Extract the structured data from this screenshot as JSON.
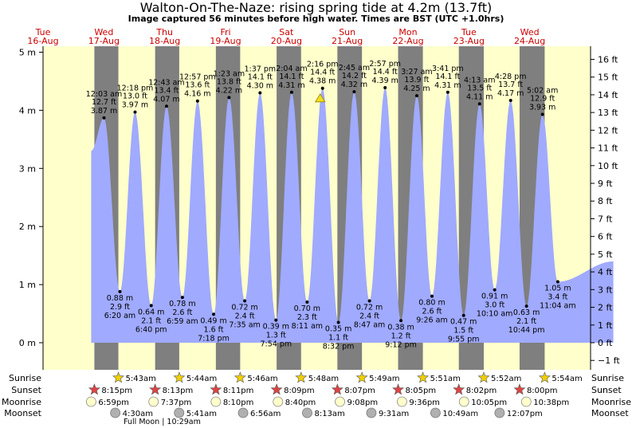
{
  "title": "Walton-On-The-Naze: rising  spring tide at 4.2m (13.7ft)",
  "subtitle": "Image captured 56 minutes before high water. Times are BST (UTC +1.0hrs)",
  "colors": {
    "background": "#ffffcc",
    "night": "#7f7f7f",
    "tide_fill": "#a0aaff",
    "day_label": "#cc0000",
    "sun_star": "#f0d000",
    "sunset_star": "#dd4444",
    "moonrise": "#ffffcc",
    "moonset": "#b0b0b0"
  },
  "days": [
    {
      "dow": "Tue",
      "date": "16-Aug"
    },
    {
      "dow": "Wed",
      "date": "17-Aug"
    },
    {
      "dow": "Thu",
      "date": "18-Aug"
    },
    {
      "dow": "Fri",
      "date": "19-Aug"
    },
    {
      "dow": "Sat",
      "date": "20-Aug"
    },
    {
      "dow": "Sun",
      "date": "21-Aug"
    },
    {
      "dow": "Mon",
      "date": "22-Aug"
    },
    {
      "dow": "Tue",
      "date": "23-Aug"
    },
    {
      "dow": "Wed",
      "date": "24-Aug"
    }
  ],
  "row_labels": {
    "sunrise": "Sunrise",
    "sunset": "Sunset",
    "moonrise": "Moonrise",
    "moonset": "Moonset"
  },
  "full_moon_note": "Full Moon | 10:29am",
  "chart_data": {
    "type": "area",
    "x_unit": "hours since 2016-08-16 00:00 BST",
    "y_left": {
      "unit": "m",
      "ticks": [
        0,
        1,
        2,
        3,
        4,
        5
      ],
      "tick_labels": [
        "0 m",
        "1 m",
        "2 m",
        "3 m",
        "4 m",
        "5 m"
      ]
    },
    "y_right": {
      "unit": "ft",
      "ticks": [
        -1,
        0,
        1,
        2,
        3,
        4,
        5,
        6,
        7,
        8,
        9,
        10,
        11,
        12,
        13,
        14,
        15,
        16
      ],
      "tick_labels": [
        "−1 ft",
        "0 ft",
        "1 ft",
        "2 ft",
        "3 ft",
        "4 ft",
        "5 ft",
        "6 ft",
        "7 ft",
        "8 ft",
        "9 ft",
        "10 ft",
        "11 ft",
        "12 ft",
        "13 ft",
        "14 ft",
        "15 ft",
        "16 ft"
      ]
    },
    "curve_start": {
      "time": 19.0,
      "height_m": 3.3
    },
    "curve_end": {
      "time": 225.0,
      "height_m": 1.4
    },
    "tides": [
      {
        "type": "high",
        "time": 24.05,
        "label": "12:03 am",
        "ft": "12.7 ft",
        "m": "3.87 m",
        "height_m": 3.87
      },
      {
        "type": "low",
        "time": 30.33,
        "label": "6:20 am",
        "ft": "2.9 ft",
        "m": "0.88 m",
        "height_m": 0.88
      },
      {
        "type": "high",
        "time": 36.3,
        "label": "12:18 pm",
        "ft": "13.0 ft",
        "m": "3.97 m",
        "height_m": 3.97
      },
      {
        "type": "low",
        "time": 42.67,
        "label": "6:40 pm",
        "ft": "2.1 ft",
        "m": "0.64 m",
        "height_m": 0.64
      },
      {
        "type": "high",
        "time": 48.72,
        "label": "12:43 am",
        "ft": "13.4 ft",
        "m": "4.07 m",
        "height_m": 4.07
      },
      {
        "type": "low",
        "time": 54.98,
        "label": "6:59 am",
        "ft": "2.6 ft",
        "m": "0.78 m",
        "height_m": 0.78
      },
      {
        "type": "high",
        "time": 60.95,
        "label": "12:57 pm",
        "ft": "13.6 ft",
        "m": "4.16 m",
        "height_m": 4.16
      },
      {
        "type": "low",
        "time": 67.3,
        "label": "7:18 pm",
        "ft": "1.6 ft",
        "m": "0.49 m",
        "height_m": 0.49
      },
      {
        "type": "high",
        "time": 73.38,
        "label": "1:23 am",
        "ft": "13.8 ft",
        "m": "4.22 m",
        "height_m": 4.22
      },
      {
        "type": "low",
        "time": 79.58,
        "label": "7:35 am",
        "ft": "2.4 ft",
        "m": "0.72 m",
        "height_m": 0.72
      },
      {
        "type": "high",
        "time": 85.62,
        "label": "1:37 pm",
        "ft": "14.1 ft",
        "m": "4.30 m",
        "height_m": 4.3
      },
      {
        "type": "low",
        "time": 91.9,
        "label": "7:54 pm",
        "ft": "1.3 ft",
        "m": "0.39 m",
        "height_m": 0.39
      },
      {
        "type": "high",
        "time": 98.07,
        "label": "2:04 am",
        "ft": "14.1 ft",
        "m": "4.31 m",
        "height_m": 4.31
      },
      {
        "type": "low",
        "time": 104.18,
        "label": "8:11 am",
        "ft": "2.3 ft",
        "m": "0.70 m",
        "height_m": 0.7
      },
      {
        "type": "high",
        "time": 110.27,
        "label": "2:16 pm",
        "ft": "14.4 ft",
        "m": "4.38 m",
        "height_m": 4.38
      },
      {
        "type": "low",
        "time": 116.53,
        "label": "8:32 pm",
        "ft": "1.1 ft",
        "m": "0.35 m",
        "height_m": 0.35
      },
      {
        "type": "high",
        "time": 122.75,
        "label": "2:45 am",
        "ft": "14.2 ft",
        "m": "4.32 m",
        "height_m": 4.32
      },
      {
        "type": "low",
        "time": 128.78,
        "label": "8:47 am",
        "ft": "2.4 ft",
        "m": "0.72 m",
        "height_m": 0.72
      },
      {
        "type": "high",
        "time": 134.95,
        "label": "2:57 pm",
        "ft": "14.4 ft",
        "m": "4.39 m",
        "height_m": 4.39
      },
      {
        "type": "low",
        "time": 141.2,
        "label": "9:12 pm",
        "ft": "1.2 ft",
        "m": "0.38 m",
        "height_m": 0.38
      },
      {
        "type": "high",
        "time": 147.45,
        "label": "3:27 am",
        "ft": "13.9 ft",
        "m": "4.25 m",
        "height_m": 4.25
      },
      {
        "type": "low",
        "time": 153.43,
        "label": "9:26 am",
        "ft": "2.6 ft",
        "m": "0.80 m",
        "height_m": 0.8
      },
      {
        "type": "high",
        "time": 159.68,
        "label": "3:41 pm",
        "ft": "14.1 ft",
        "m": "4.31 m",
        "height_m": 4.31
      },
      {
        "type": "low",
        "time": 165.92,
        "label": "9:55 pm",
        "ft": "1.5 ft",
        "m": "0.47 m",
        "height_m": 0.47
      },
      {
        "type": "high",
        "time": 172.22,
        "label": "4:13 am",
        "ft": "13.5 ft",
        "m": "4.11 m",
        "height_m": 4.11
      },
      {
        "type": "low",
        "time": 178.17,
        "label": "10:10 am",
        "ft": "3.0 ft",
        "m": "0.91 m",
        "height_m": 0.91
      },
      {
        "type": "high",
        "time": 184.47,
        "label": "4:28 pm",
        "ft": "13.7 ft",
        "m": "4.17 m",
        "height_m": 4.17
      },
      {
        "type": "low",
        "time": 190.73,
        "label": "10:44 pm",
        "ft": "2.1 ft",
        "m": "0.63 m",
        "height_m": 0.63
      },
      {
        "type": "high",
        "time": 197.03,
        "label": "5:02 am",
        "ft": "12.9 ft",
        "m": "3.93 m",
        "height_m": 3.93
      },
      {
        "type": "low",
        "time": 203.07,
        "label": "11:04 am",
        "ft": "3.4 ft",
        "m": "1.05 m",
        "height_m": 1.05
      }
    ],
    "current_marker": {
      "time": 109.33,
      "height_m": 4.2
    },
    "sunrise": [
      {
        "time": 29.72,
        "label": "5:43am"
      },
      {
        "time": 53.73,
        "label": "5:44am"
      },
      {
        "time": 77.77,
        "label": "5:46am"
      },
      {
        "time": 101.8,
        "label": "5:48am"
      },
      {
        "time": 125.82,
        "label": "5:49am"
      },
      {
        "time": 149.85,
        "label": "5:51am"
      },
      {
        "time": 173.87,
        "label": "5:52am"
      },
      {
        "time": 197.9,
        "label": "5:54am"
      }
    ],
    "sunset": [
      {
        "time": 20.25,
        "label": "8:15pm"
      },
      {
        "time": 44.22,
        "label": "8:13pm"
      },
      {
        "time": 68.18,
        "label": "8:11pm"
      },
      {
        "time": 92.15,
        "label": "8:09pm"
      },
      {
        "time": 116.12,
        "label": "8:07pm"
      },
      {
        "time": 140.08,
        "label": "8:05pm"
      },
      {
        "time": 164.03,
        "label": "8:02pm"
      },
      {
        "time": 188.0,
        "label": "8:00pm"
      }
    ],
    "moonrise": [
      {
        "time": 18.98,
        "label": "6:59pm"
      },
      {
        "time": 43.62,
        "label": "7:37pm"
      },
      {
        "time": 68.17,
        "label": "8:10pm"
      },
      {
        "time": 92.67,
        "label": "8:40pm"
      },
      {
        "time": 117.13,
        "label": "9:08pm"
      },
      {
        "time": 141.6,
        "label": "9:36pm"
      },
      {
        "time": 166.08,
        "label": "10:05pm"
      },
      {
        "time": 190.63,
        "label": "10:38pm"
      }
    ],
    "moonset": [
      {
        "time": 28.5,
        "label": "4:30am"
      },
      {
        "time": 53.68,
        "label": "5:41am"
      },
      {
        "time": 78.93,
        "label": "6:56am"
      },
      {
        "time": 104.22,
        "label": "8:13am"
      },
      {
        "time": 129.52,
        "label": "9:31am"
      },
      {
        "time": 154.82,
        "label": "10:49am"
      },
      {
        "time": 180.12,
        "label": "12:07pm"
      }
    ]
  }
}
